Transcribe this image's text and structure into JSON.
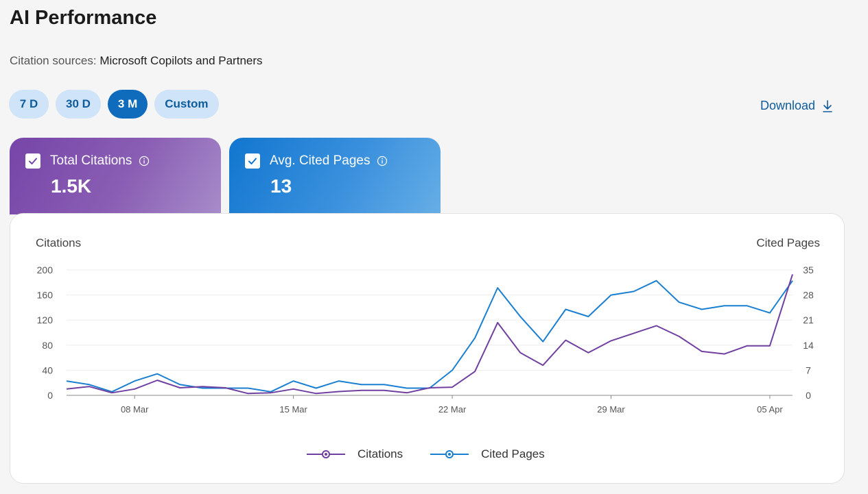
{
  "header": {
    "title": "AI Performance",
    "source_label": "Citation sources:",
    "source_value": "Microsoft Copilots and Partners"
  },
  "ranges": [
    {
      "label": "7 D",
      "active": false
    },
    {
      "label": "30 D",
      "active": false
    },
    {
      "label": "3 M",
      "active": true
    },
    {
      "label": "Custom",
      "active": false
    }
  ],
  "download_label": "Download",
  "metrics": {
    "citations": {
      "label": "Total Citations",
      "value": "1.5K",
      "checked": true
    },
    "pages": {
      "label": "Avg. Cited Pages",
      "value": "13",
      "checked": true
    }
  },
  "colors": {
    "citations": "#7040a0",
    "pages": "#1a7fd0",
    "active_range": "#0f6cbd"
  },
  "chart_data": {
    "type": "line",
    "ylabel_left": "Citations",
    "ylabel_right": "Cited Pages",
    "left_ticks": [
      "200",
      "160",
      "120",
      "80",
      "40",
      "0"
    ],
    "right_ticks": [
      "35",
      "28",
      "21",
      "14",
      "7",
      "0"
    ],
    "ylim_left": [
      0,
      200
    ],
    "ylim_right": [
      0,
      35
    ],
    "x_tick_labels": [
      {
        "label": "08 Mar",
        "index": 3
      },
      {
        "label": "15 Mar",
        "index": 10
      },
      {
        "label": "22 Mar",
        "index": 17
      },
      {
        "label": "29 Mar",
        "index": 24
      },
      {
        "label": "05 Apr",
        "index": 31
      }
    ],
    "x": [
      "05 Mar",
      "06 Mar",
      "07 Mar",
      "08 Mar",
      "09 Mar",
      "10 Mar",
      "11 Mar",
      "12 Mar",
      "13 Mar",
      "14 Mar",
      "15 Mar",
      "16 Mar",
      "17 Mar",
      "18 Mar",
      "19 Mar",
      "20 Mar",
      "21 Mar",
      "22 Mar",
      "23 Mar",
      "24 Mar",
      "25 Mar",
      "26 Mar",
      "27 Mar",
      "28 Mar",
      "29 Mar",
      "30 Mar",
      "31 Mar",
      "01 Apr",
      "02 Apr",
      "03 Apr",
      "04 Apr",
      "05 Apr",
      "06 Apr"
    ],
    "series": [
      {
        "name": "Citations",
        "axis": "left",
        "values": [
          10,
          14,
          4,
          10,
          24,
          12,
          14,
          12,
          3,
          4,
          10,
          3,
          6,
          8,
          8,
          4,
          12,
          13,
          38,
          116,
          68,
          48,
          88,
          68,
          87,
          99,
          111,
          94,
          70,
          66,
          79,
          79,
          193
        ]
      },
      {
        "name": "Cited Pages",
        "axis": "right",
        "values": [
          4,
          3,
          1,
          4,
          6,
          3,
          2,
          2,
          2,
          1,
          4,
          2,
          4,
          3,
          3,
          2,
          2,
          7,
          16,
          30,
          22,
          15,
          24,
          22,
          28,
          29,
          32,
          26,
          24,
          25,
          25,
          23,
          32
        ]
      }
    ],
    "grid": true,
    "legend_position": "bottom-center"
  }
}
